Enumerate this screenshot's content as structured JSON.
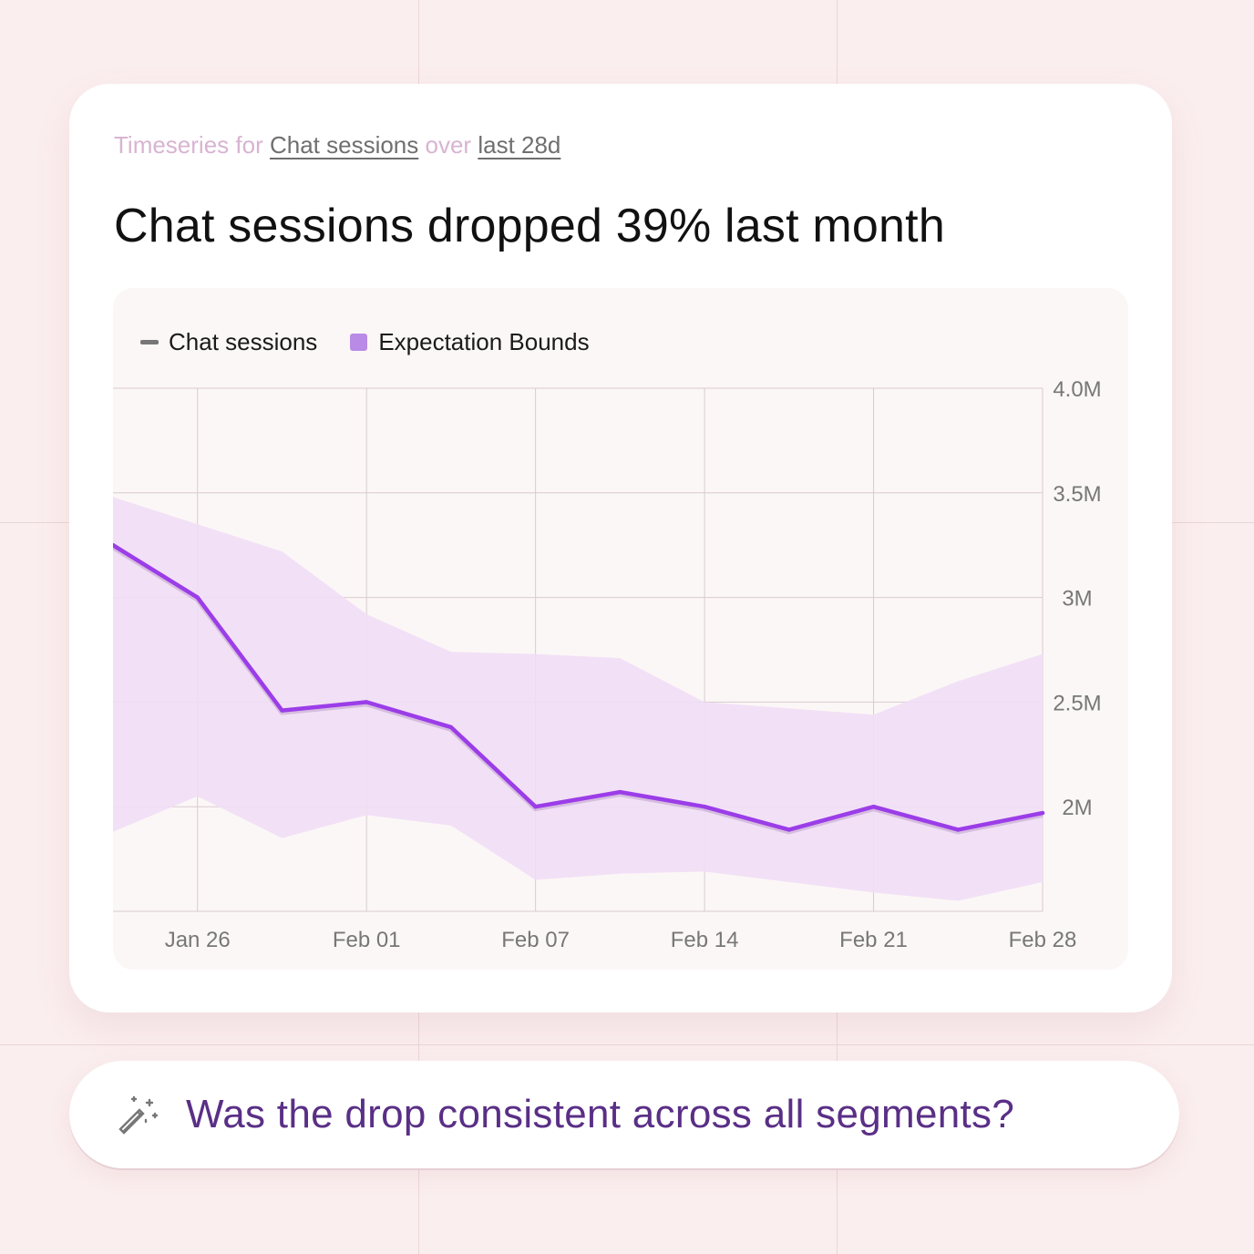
{
  "header": {
    "prefix": "Timeseries for",
    "metric": "Chat sessions",
    "connector": "over",
    "range": "last 28d",
    "headline": "Chat sessions dropped 39% last month"
  },
  "prompt": {
    "icon": "magic-wand-icon",
    "text": "Was the drop consistent across all segments?"
  },
  "colors": {
    "series": "#9b3de8",
    "band": "#f1def5",
    "grid": "#d7cbd0",
    "axis_text": "#777777"
  },
  "chart_data": {
    "type": "line",
    "title": "Chat sessions dropped 39% last month",
    "x": [
      "Jan 23",
      "Jan 26",
      "Jan 29",
      "Feb 01",
      "Feb 04",
      "Feb 07",
      "Feb 10",
      "Feb 14",
      "Feb 17",
      "Feb 21",
      "Feb 24",
      "Feb 28"
    ],
    "series": [
      {
        "name": "Chat sessions",
        "values": [
          3.25,
          3.0,
          2.46,
          2.5,
          2.38,
          2.0,
          2.07,
          2.0,
          1.89,
          2.0,
          1.89,
          1.97
        ]
      }
    ],
    "bounds": {
      "name": "Expectation Bounds",
      "upper": [
        3.48,
        3.35,
        3.22,
        2.92,
        2.74,
        2.73,
        2.71,
        2.5,
        2.47,
        2.44,
        2.6,
        2.73
      ],
      "lower": [
        1.88,
        2.05,
        1.85,
        1.96,
        1.91,
        1.65,
        1.68,
        1.69,
        1.64,
        1.59,
        1.55,
        1.64
      ]
    },
    "legend": [
      "Chat sessions",
      "Expectation Bounds"
    ],
    "legend_position": "top-left",
    "x_ticks": [
      "Jan 26",
      "Feb 01",
      "Feb 07",
      "Feb 14",
      "Feb 21",
      "Feb 28"
    ],
    "y_ticks": [
      2.0,
      2.5,
      3.0,
      3.5,
      4.0
    ],
    "y_tick_labels": [
      "2M",
      "2.5M",
      "3M",
      "3.5M",
      "4.0M"
    ],
    "ylim": [
      1.5,
      4.0
    ],
    "ylabel": "",
    "xlabel": "",
    "y_axis_side": "right",
    "grid": true
  }
}
